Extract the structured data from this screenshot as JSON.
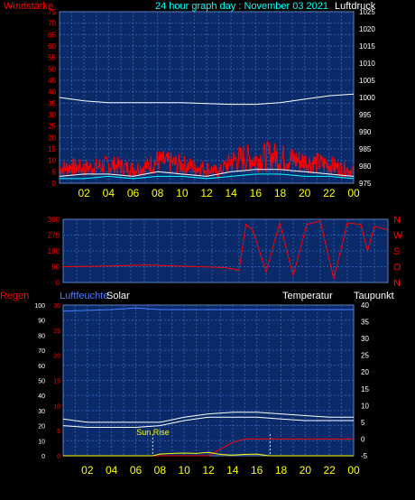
{
  "header": {
    "left_label": "Windstärke",
    "title": "24 hour graph day : November 03 2021",
    "right_label": "Luftdruck"
  },
  "colors": {
    "red": "#ff0000",
    "cyan": "#00ffff",
    "yellow": "#ffff00",
    "white": "#ffffff",
    "blue": "#0000ff",
    "panel_bg": "#0a2a6a",
    "grid": "#2d5db0"
  },
  "hour_ticks": [
    "02",
    "04",
    "06",
    "08",
    "10",
    "12",
    "14",
    "16",
    "18",
    "20",
    "22",
    "00"
  ],
  "chart_data": [
    {
      "id": "wind",
      "type": "line",
      "left_axis_label": "Windstärke",
      "right_axis_label": "Luftdruck",
      "left_ticks": [
        "0",
        "5",
        "10",
        "15",
        "20",
        "25",
        "30",
        "35",
        "40",
        "45",
        "50",
        "55",
        "60",
        "65",
        "70",
        "75"
      ],
      "right_ticks": [
        "975",
        "980",
        "985",
        "990",
        "995",
        "1000",
        "1005",
        "1010",
        "1015",
        "1020",
        "1025"
      ],
      "ylim_left": [
        0,
        75
      ],
      "ylim_right": [
        975,
        1025
      ],
      "series": [
        {
          "name": "Luftdruck",
          "axis": "right",
          "color": "#ffffff",
          "x": [
            0,
            2,
            4,
            6,
            8,
            10,
            12,
            14,
            16,
            18,
            20,
            22,
            24
          ],
          "y": [
            1000,
            999,
            998.5,
            998.5,
            998.5,
            998.5,
            998.2,
            998,
            998,
            998.5,
            999.5,
            1000.5,
            1001
          ]
        },
        {
          "axis": "left",
          "color": "#ff0000",
          "style": "spiky",
          "x": [
            0,
            1,
            2,
            3,
            4,
            5,
            6,
            7,
            8,
            9,
            10,
            11,
            12,
            13,
            14,
            15,
            16,
            17,
            18,
            19,
            20,
            21,
            22,
            23,
            24
          ],
          "y": [
            8,
            9,
            8,
            9,
            10,
            9,
            8,
            9,
            12,
            11,
            10,
            9,
            8,
            6,
            12,
            14,
            13,
            15,
            14,
            13,
            12,
            11,
            10,
            8,
            7
          ]
        },
        {
          "axis": "left",
          "color": "#ffffff",
          "x": [
            0,
            2,
            4,
            6,
            8,
            10,
            12,
            14,
            16,
            18,
            20,
            22,
            24
          ],
          "y": [
            3,
            4,
            4,
            3,
            5,
            4,
            3,
            5,
            6,
            6,
            5,
            4,
            3
          ]
        },
        {
          "axis": "left",
          "color": "#00ffff",
          "x": [
            0,
            2,
            4,
            6,
            8,
            10,
            12,
            14,
            16,
            18,
            20,
            22,
            24
          ],
          "y": [
            2,
            2,
            3,
            2,
            3,
            3,
            2,
            3,
            4,
            4,
            3,
            3,
            2
          ]
        }
      ]
    },
    {
      "id": "direction",
      "type": "line",
      "left_ticks": [
        "0",
        "90",
        "180",
        "270",
        "360"
      ],
      "compass_labels": [
        "N",
        "W",
        "S",
        "O",
        "N"
      ],
      "ylim": [
        0,
        360
      ],
      "series": [
        {
          "color": "#ff0000",
          "x": [
            0,
            2,
            4,
            6,
            8,
            10,
            12,
            13,
            13.5,
            14,
            15,
            16,
            17,
            18,
            19,
            20,
            21,
            22,
            22.5,
            23,
            24
          ],
          "y": [
            90,
            92,
            95,
            100,
            95,
            90,
            85,
            70,
            330,
            300,
            60,
            340,
            40,
            330,
            350,
            20,
            340,
            330,
            180,
            320,
            300
          ]
        }
      ]
    },
    {
      "id": "bottom",
      "type": "line",
      "left_axis_label": "Regen",
      "left_axis_label_2": "Luftfeuchte",
      "solar_label": "Solar",
      "temperature_label": "Temperatur",
      "dewpoint_label": "Taupunkt",
      "annotation": "Sun Rise",
      "left_ticks": [
        "0",
        "5",
        "10",
        "15",
        "20",
        "25",
        "30"
      ],
      "inner_ticks": [
        "0",
        "10",
        "20",
        "30",
        "40",
        "50",
        "60",
        "70",
        "80",
        "90",
        "100"
      ],
      "right_ticks": [
        "-5",
        "0",
        "5",
        "10",
        "15",
        "20",
        "25",
        "30",
        "35",
        "40"
      ],
      "ylim_inner": [
        0,
        100
      ],
      "ylim_right": [
        -5,
        40
      ],
      "series": [
        {
          "color": "#4a7dff",
          "axis": "inner",
          "x": [
            0,
            4,
            6,
            8,
            12,
            16,
            20,
            24
          ],
          "y": [
            96,
            97,
            98,
            97,
            97,
            97,
            97,
            97
          ]
        },
        {
          "color": "#ffffff",
          "axis": "right",
          "x": [
            0,
            2,
            4,
            6,
            8,
            10,
            12,
            14,
            16,
            18,
            20,
            22,
            24
          ],
          "y": [
            6,
            5,
            5,
            5,
            5,
            6.5,
            7.5,
            8,
            8,
            7.5,
            7,
            6.5,
            6.5
          ]
        },
        {
          "color": "#ffffff",
          "axis": "right",
          "x": [
            0,
            2,
            4,
            6,
            8,
            10,
            12,
            14,
            16,
            18,
            20,
            22,
            24
          ],
          "y": [
            4,
            3.5,
            3.5,
            3.5,
            4,
            5.5,
            6.5,
            6.5,
            6.5,
            6,
            5.5,
            5.5,
            5.5
          ]
        },
        {
          "color": "#ff0000",
          "axis": "right",
          "x": [
            0,
            12,
            13,
            14,
            15,
            16,
            17,
            18,
            20,
            22,
            24
          ],
          "y": [
            -5,
            -5,
            -3,
            -1,
            0,
            0,
            0,
            0,
            0,
            0,
            0
          ]
        },
        {
          "color": "#ffff00",
          "axis": "right",
          "x": [
            0,
            7.4,
            8,
            9,
            10,
            11,
            12,
            13,
            14,
            15,
            16,
            17,
            24
          ],
          "y": [
            -5,
            -5,
            -4.5,
            -4.3,
            -4.2,
            -4.3,
            -4,
            -4.6,
            -4.8,
            -4.6,
            -4.5,
            -5,
            -5
          ]
        }
      ],
      "markers": [
        {
          "x": 7.4,
          "color": "#ffff00"
        },
        {
          "x": 17.1,
          "color": "#ffff00"
        }
      ]
    }
  ]
}
